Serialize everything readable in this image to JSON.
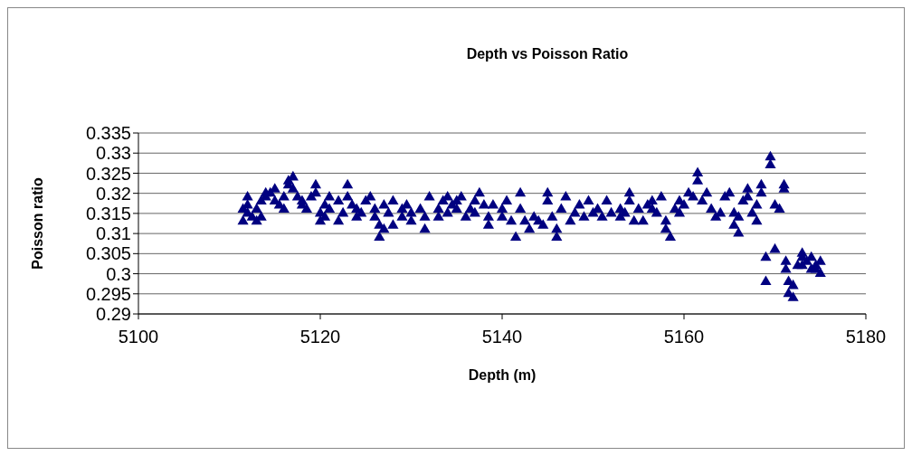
{
  "chart_data": {
    "type": "scatter",
    "title": "Depth vs Poisson Ratio",
    "xlabel": "Depth (m)",
    "ylabel": "Poisson ratio",
    "xlim": [
      5100,
      5180
    ],
    "xticks": [
      5100,
      5120,
      5140,
      5160,
      5180
    ],
    "ylim": [
      0.29,
      0.335
    ],
    "yticks": [
      0.29,
      0.295,
      0.3,
      0.305,
      0.31,
      0.315,
      0.32,
      0.325,
      0.33,
      0.335
    ],
    "grid": "y",
    "legend": false,
    "marker": "triangle",
    "series": [
      {
        "color": "#000080",
        "x": [
          5111.5,
          5111.5,
          5112,
          5112,
          5112,
          5112.5,
          5113,
          5113,
          5113.5,
          5113.5,
          5114,
          5114,
          5114.5,
          5115,
          5115,
          5115.5,
          5116,
          5116,
          5116.5,
          5116.5,
          5117,
          5117,
          5117.5,
          5118,
          5118,
          5118.5,
          5119,
          5119.5,
          5119.5,
          5120,
          5120,
          5120.5,
          5120.5,
          5121,
          5121,
          5122,
          5122,
          5122.5,
          5123,
          5123,
          5123.5,
          5124,
          5124,
          5124.5,
          5125,
          5125.5,
          5126,
          5126,
          5126.5,
          5126.5,
          5127,
          5127,
          5127.5,
          5128,
          5128,
          5129,
          5129,
          5129.5,
          5130,
          5130,
          5131,
          5131.5,
          5131.5,
          5132,
          5133,
          5133,
          5133.5,
          5134,
          5134,
          5134.5,
          5135,
          5135,
          5135.5,
          5136,
          5136.5,
          5137,
          5137,
          5137.5,
          5138,
          5138.5,
          5138.5,
          5139,
          5140,
          5140,
          5140.5,
          5141,
          5141.5,
          5142,
          5142,
          5142.5,
          5143,
          5143.5,
          5144,
          5144.5,
          5145,
          5145,
          5145.5,
          5146,
          5146,
          5146.5,
          5147,
          5147.5,
          5148,
          5148.5,
          5149,
          5149.5,
          5150,
          5150.5,
          5151,
          5151.5,
          5152,
          5153,
          5153,
          5153.5,
          5154,
          5154,
          5154.5,
          5155,
          5155.5,
          5156,
          5156.5,
          5156.5,
          5157,
          5157.5,
          5158,
          5158,
          5158.5,
          5159,
          5159.5,
          5159.5,
          5160,
          5160.5,
          5161,
          5161.5,
          5161.5,
          5162,
          5162.5,
          5163,
          5163.5,
          5164,
          5164.5,
          5165,
          5165.5,
          5165.5,
          5166,
          5166,
          5166.5,
          5167,
          5167,
          5167.5,
          5168,
          5168,
          5168.5,
          5168.5,
          5169,
          5169,
          5169.5,
          5169.5,
          5170,
          5170,
          5170.5,
          5171,
          5171,
          5171.2,
          5171.2,
          5171.5,
          5171.5,
          5172,
          5172,
          5172.5,
          5173,
          5173,
          5173,
          5173.5,
          5174,
          5174,
          5174.5,
          5174.5,
          5175,
          5175
        ],
        "values": [
          0.313,
          0.316,
          0.319,
          0.317,
          0.315,
          0.314,
          0.313,
          0.316,
          0.314,
          0.318,
          0.32,
          0.319,
          0.32,
          0.318,
          0.321,
          0.317,
          0.319,
          0.316,
          0.322,
          0.323,
          0.324,
          0.321,
          0.319,
          0.318,
          0.317,
          0.316,
          0.319,
          0.322,
          0.32,
          0.313,
          0.315,
          0.314,
          0.317,
          0.319,
          0.316,
          0.313,
          0.318,
          0.315,
          0.319,
          0.322,
          0.317,
          0.314,
          0.316,
          0.315,
          0.318,
          0.319,
          0.314,
          0.316,
          0.312,
          0.309,
          0.317,
          0.311,
          0.315,
          0.312,
          0.318,
          0.316,
          0.314,
          0.317,
          0.313,
          0.315,
          0.316,
          0.311,
          0.314,
          0.319,
          0.316,
          0.314,
          0.318,
          0.315,
          0.319,
          0.317,
          0.318,
          0.316,
          0.319,
          0.314,
          0.316,
          0.318,
          0.315,
          0.32,
          0.317,
          0.312,
          0.314,
          0.317,
          0.316,
          0.314,
          0.318,
          0.313,
          0.309,
          0.32,
          0.316,
          0.313,
          0.311,
          0.314,
          0.313,
          0.312,
          0.32,
          0.318,
          0.314,
          0.311,
          0.309,
          0.316,
          0.319,
          0.313,
          0.315,
          0.317,
          0.314,
          0.318,
          0.315,
          0.316,
          0.314,
          0.318,
          0.315,
          0.314,
          0.316,
          0.315,
          0.32,
          0.318,
          0.313,
          0.316,
          0.313,
          0.317,
          0.318,
          0.316,
          0.315,
          0.319,
          0.313,
          0.311,
          0.309,
          0.316,
          0.318,
          0.315,
          0.317,
          0.32,
          0.319,
          0.325,
          0.323,
          0.318,
          0.32,
          0.316,
          0.314,
          0.315,
          0.319,
          0.32,
          0.315,
          0.312,
          0.31,
          0.314,
          0.318,
          0.321,
          0.319,
          0.315,
          0.313,
          0.317,
          0.32,
          0.322,
          0.298,
          0.304,
          0.329,
          0.327,
          0.317,
          0.306,
          0.316,
          0.322,
          0.321,
          0.303,
          0.301,
          0.298,
          0.295,
          0.294,
          0.297,
          0.302,
          0.305,
          0.304,
          0.302,
          0.303,
          0.304,
          0.301,
          0.302,
          0.301,
          0.303,
          0.3
        ]
      }
    ]
  }
}
